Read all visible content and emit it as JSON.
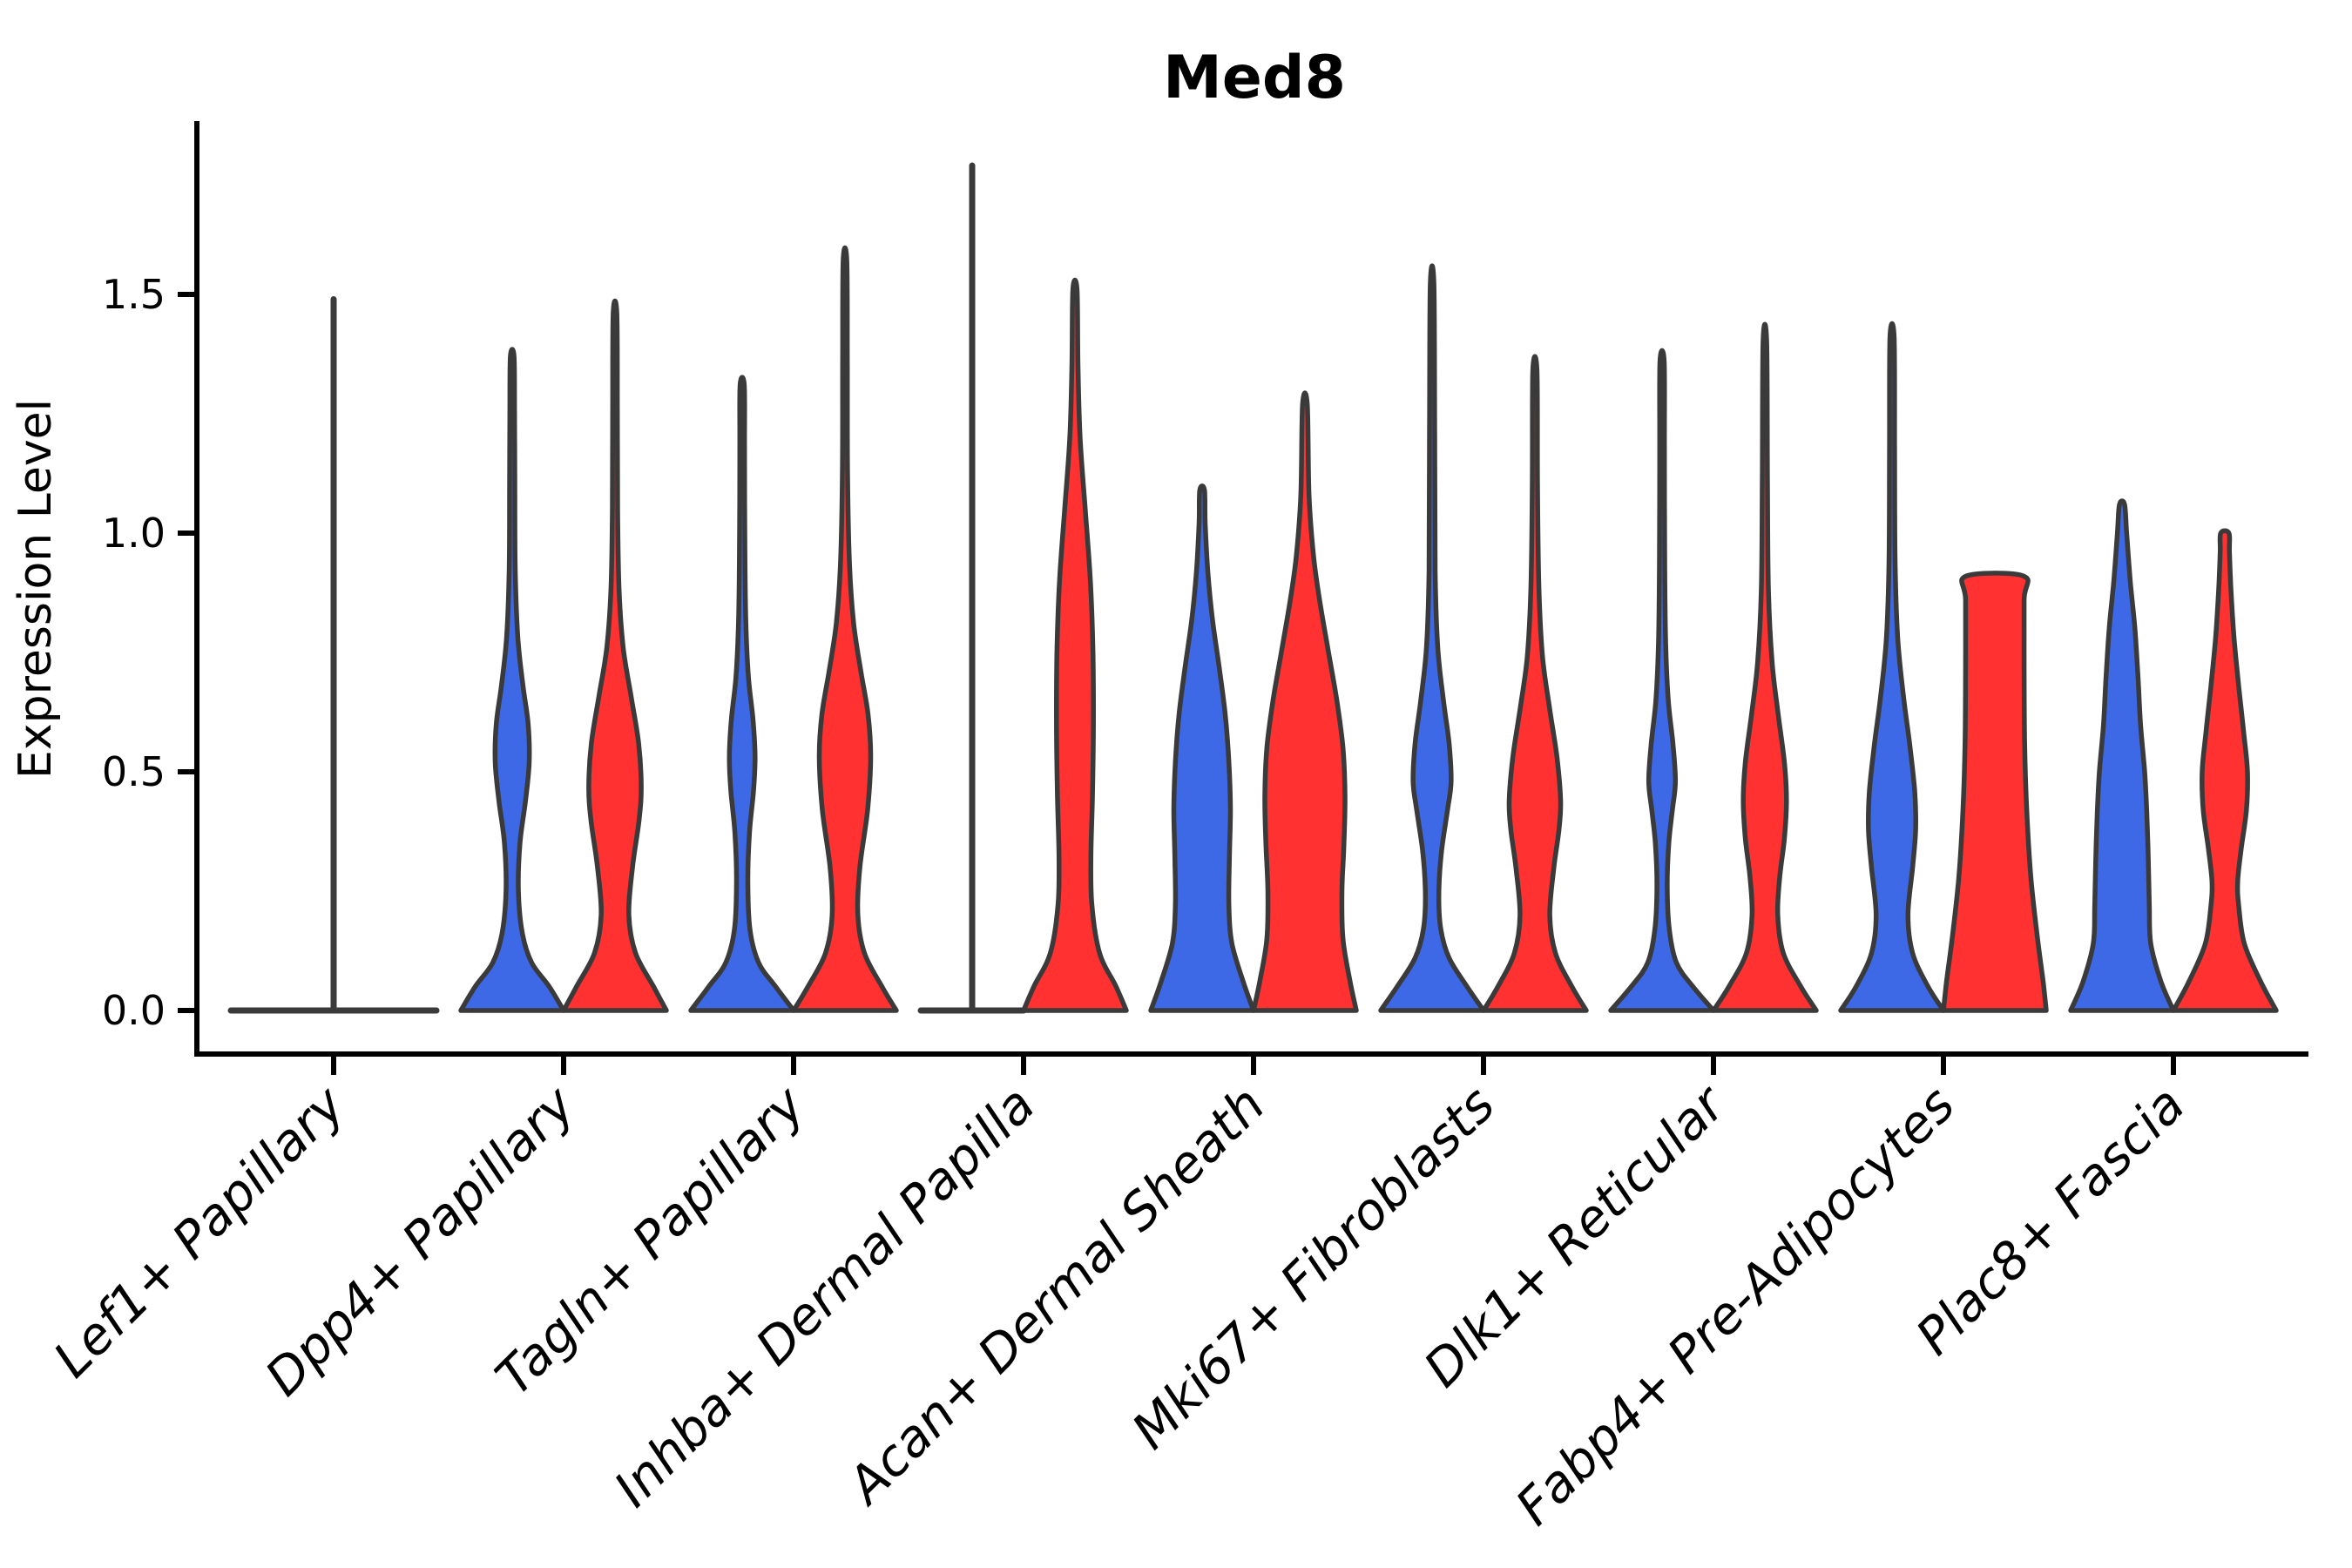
{
  "chart_data": {
    "type": "violin",
    "title": "Med8",
    "ylabel": "Expression Level",
    "xlabel": "",
    "ylim": [
      0,
      1.86
    ],
    "ytick_labels": [
      "0.0",
      "0.5",
      "1.0",
      "1.5"
    ],
    "ytick_values": [
      0,
      0.5,
      1.0,
      1.5
    ],
    "grid": false,
    "legend_position": "none",
    "x_tick_rotation": 45,
    "outline_color": "#3A3A3A",
    "series": [
      {
        "name": "group-blue",
        "color": "#3E69E6"
      },
      {
        "name": "group-red",
        "color": "#FF3131"
      }
    ],
    "categories": [
      "Lef1+ Papillary",
      "Dpp4+ Papillary",
      "Tagln+ Papillary",
      "Inhba+ Dermal Papilla",
      "Acan+ Dermal Sheath",
      "Mki67+ Fibroblasts",
      "Dlk1+ Reticular",
      "Fabp4+ Pre-Adipocytes",
      "Plac8+ Fascia"
    ],
    "violins": [
      {
        "category": "Lef1+ Papillary",
        "blue": {
          "type": "flat_spike",
          "span": "category",
          "max": 1.49
        },
        "red": {
          "type": "absent",
          "max": 0
        }
      },
      {
        "category": "Dpp4+ Papillary",
        "blue": {
          "type": "kde",
          "max": 1.37,
          "flat_top": false,
          "profile": [
            [
              0,
              1.0
            ],
            [
              0.05,
              0.72
            ],
            [
              0.1,
              0.38
            ],
            [
              0.16,
              0.2
            ],
            [
              0.25,
              0.12
            ],
            [
              0.35,
              0.15
            ],
            [
              0.44,
              0.26
            ],
            [
              0.52,
              0.33
            ],
            [
              0.6,
              0.31
            ],
            [
              0.68,
              0.21
            ],
            [
              0.78,
              0.11
            ],
            [
              0.92,
              0.06
            ],
            [
              1.1,
              0.05
            ],
            [
              1.25,
              0.045
            ],
            [
              1.37,
              0.035
            ]
          ]
        },
        "red": {
          "type": "kde",
          "max": 1.46,
          "flat_top": false,
          "profile": [
            [
              0,
              1.0
            ],
            [
              0.05,
              0.75
            ],
            [
              0.12,
              0.4
            ],
            [
              0.2,
              0.27
            ],
            [
              0.3,
              0.34
            ],
            [
              0.4,
              0.47
            ],
            [
              0.47,
              0.51
            ],
            [
              0.56,
              0.46
            ],
            [
              0.66,
              0.31
            ],
            [
              0.76,
              0.16
            ],
            [
              0.88,
              0.08
            ],
            [
              1.05,
              0.05
            ],
            [
              1.25,
              0.045
            ],
            [
              1.46,
              0.035
            ]
          ]
        }
      },
      {
        "category": "Tagln+ Papillary",
        "blue": {
          "type": "kde",
          "max": 1.31,
          "flat_top": false,
          "profile": [
            [
              0,
              1.0
            ],
            [
              0.05,
              0.65
            ],
            [
              0.1,
              0.32
            ],
            [
              0.17,
              0.15
            ],
            [
              0.27,
              0.11
            ],
            [
              0.37,
              0.14
            ],
            [
              0.46,
              0.22
            ],
            [
              0.53,
              0.25
            ],
            [
              0.61,
              0.21
            ],
            [
              0.7,
              0.12
            ],
            [
              0.82,
              0.07
            ],
            [
              1.0,
              0.05
            ],
            [
              1.18,
              0.045
            ],
            [
              1.31,
              0.04
            ]
          ]
        },
        "red": {
          "type": "kde",
          "max": 1.57,
          "flat_top": false,
          "profile": [
            [
              0,
              1.0
            ],
            [
              0.05,
              0.72
            ],
            [
              0.12,
              0.38
            ],
            [
              0.2,
              0.25
            ],
            [
              0.3,
              0.29
            ],
            [
              0.42,
              0.44
            ],
            [
              0.53,
              0.5
            ],
            [
              0.62,
              0.45
            ],
            [
              0.71,
              0.31
            ],
            [
              0.81,
              0.17
            ],
            [
              0.93,
              0.09
            ],
            [
              1.12,
              0.05
            ],
            [
              1.35,
              0.045
            ],
            [
              1.57,
              0.035
            ]
          ]
        }
      },
      {
        "category": "Inhba+ Dermal Papilla",
        "blue": {
          "type": "flat_spike",
          "span": "slot",
          "max": 1.77
        },
        "red": {
          "type": "kde",
          "max": 1.51,
          "flat_top": false,
          "profile": [
            [
              0,
              1.0
            ],
            [
              0.05,
              0.8
            ],
            [
              0.12,
              0.48
            ],
            [
              0.22,
              0.33
            ],
            [
              0.32,
              0.31
            ],
            [
              0.45,
              0.34
            ],
            [
              0.6,
              0.36
            ],
            [
              0.75,
              0.35
            ],
            [
              0.9,
              0.3
            ],
            [
              1.05,
              0.2
            ],
            [
              1.2,
              0.1
            ],
            [
              1.35,
              0.06
            ],
            [
              1.51,
              0.04
            ]
          ]
        }
      },
      {
        "category": "Acan+ Dermal Sheath",
        "blue": {
          "type": "kde",
          "max": 1.09,
          "flat_top": false,
          "profile": [
            [
              0,
              1.0
            ],
            [
              0.06,
              0.8
            ],
            [
              0.14,
              0.58
            ],
            [
              0.22,
              0.52
            ],
            [
              0.32,
              0.53
            ],
            [
              0.42,
              0.55
            ],
            [
              0.52,
              0.52
            ],
            [
              0.62,
              0.45
            ],
            [
              0.72,
              0.33
            ],
            [
              0.82,
              0.2
            ],
            [
              0.92,
              0.11
            ],
            [
              1.02,
              0.06
            ],
            [
              1.09,
              0.045
            ]
          ]
        },
        "red": {
          "type": "kde",
          "max": 1.27,
          "flat_top": false,
          "profile": [
            [
              0,
              1.0
            ],
            [
              0.06,
              0.88
            ],
            [
              0.15,
              0.74
            ],
            [
              0.25,
              0.72
            ],
            [
              0.35,
              0.76
            ],
            [
              0.45,
              0.78
            ],
            [
              0.55,
              0.74
            ],
            [
              0.65,
              0.62
            ],
            [
              0.75,
              0.46
            ],
            [
              0.85,
              0.3
            ],
            [
              0.95,
              0.17
            ],
            [
              1.08,
              0.08
            ],
            [
              1.27,
              0.045
            ]
          ]
        }
      },
      {
        "category": "Mki67+ Fibroblasts",
        "blue": {
          "type": "kde",
          "max": 1.52,
          "flat_top": false,
          "profile": [
            [
              0,
              1.0
            ],
            [
              0.05,
              0.68
            ],
            [
              0.11,
              0.33
            ],
            [
              0.17,
              0.17
            ],
            [
              0.24,
              0.13
            ],
            [
              0.33,
              0.18
            ],
            [
              0.42,
              0.3
            ],
            [
              0.48,
              0.37
            ],
            [
              0.56,
              0.33
            ],
            [
              0.65,
              0.22
            ],
            [
              0.76,
              0.11
            ],
            [
              0.92,
              0.06
            ],
            [
              1.2,
              0.05
            ],
            [
              1.52,
              0.035
            ]
          ]
        },
        "red": {
          "type": "kde",
          "max": 1.34,
          "flat_top": false,
          "profile": [
            [
              0,
              1.0
            ],
            [
              0.05,
              0.72
            ],
            [
              0.12,
              0.4
            ],
            [
              0.2,
              0.29
            ],
            [
              0.3,
              0.37
            ],
            [
              0.38,
              0.47
            ],
            [
              0.44,
              0.5
            ],
            [
              0.53,
              0.43
            ],
            [
              0.63,
              0.29
            ],
            [
              0.74,
              0.15
            ],
            [
              0.88,
              0.08
            ],
            [
              1.1,
              0.05
            ],
            [
              1.34,
              0.04
            ]
          ]
        }
      },
      {
        "category": "Dlk1+ Reticular",
        "blue": {
          "type": "kde",
          "max": 1.36,
          "flat_top": false,
          "profile": [
            [
              0,
              1.0
            ],
            [
              0.05,
              0.6
            ],
            [
              0.1,
              0.28
            ],
            [
              0.17,
              0.14
            ],
            [
              0.26,
              0.1
            ],
            [
              0.35,
              0.13
            ],
            [
              0.42,
              0.2
            ],
            [
              0.48,
              0.26
            ],
            [
              0.56,
              0.21
            ],
            [
              0.65,
              0.12
            ],
            [
              0.77,
              0.07
            ],
            [
              0.95,
              0.05
            ],
            [
              1.18,
              0.045
            ],
            [
              1.36,
              0.04
            ]
          ]
        },
        "red": {
          "type": "kde",
          "max": 1.4,
          "flat_top": false,
          "profile": [
            [
              0,
              1.0
            ],
            [
              0.05,
              0.7
            ],
            [
              0.12,
              0.36
            ],
            [
              0.2,
              0.25
            ],
            [
              0.28,
              0.29
            ],
            [
              0.36,
              0.38
            ],
            [
              0.44,
              0.42
            ],
            [
              0.52,
              0.38
            ],
            [
              0.62,
              0.26
            ],
            [
              0.73,
              0.14
            ],
            [
              0.88,
              0.07
            ],
            [
              1.1,
              0.05
            ],
            [
              1.4,
              0.035
            ]
          ]
        }
      },
      {
        "category": "Fabp4+ Pre-Adipocytes",
        "blue": {
          "type": "kde",
          "max": 1.41,
          "flat_top": false,
          "profile": [
            [
              0,
              1.0
            ],
            [
              0.05,
              0.7
            ],
            [
              0.12,
              0.4
            ],
            [
              0.2,
              0.31
            ],
            [
              0.3,
              0.4
            ],
            [
              0.38,
              0.46
            ],
            [
              0.46,
              0.44
            ],
            [
              0.56,
              0.34
            ],
            [
              0.66,
              0.22
            ],
            [
              0.78,
              0.11
            ],
            [
              0.94,
              0.06
            ],
            [
              1.18,
              0.05
            ],
            [
              1.41,
              0.04
            ]
          ]
        },
        "red": {
          "type": "kde",
          "max": 0.91,
          "flat_top": true,
          "profile": [
            [
              0,
              1.0
            ],
            [
              0.06,
              0.94
            ],
            [
              0.16,
              0.82
            ],
            [
              0.28,
              0.7
            ],
            [
              0.42,
              0.62
            ],
            [
              0.56,
              0.58
            ],
            [
              0.72,
              0.57
            ],
            [
              0.86,
              0.57
            ],
            [
              0.91,
              0.56
            ]
          ]
        }
      },
      {
        "category": "Plac8+ Fascia",
        "blue": {
          "type": "kde",
          "max": 1.06,
          "flat_top": false,
          "profile": [
            [
              0,
              1.0
            ],
            [
              0.06,
              0.76
            ],
            [
              0.14,
              0.56
            ],
            [
              0.22,
              0.53
            ],
            [
              0.32,
              0.51
            ],
            [
              0.42,
              0.48
            ],
            [
              0.5,
              0.44
            ],
            [
              0.6,
              0.36
            ],
            [
              0.7,
              0.31
            ],
            [
              0.8,
              0.25
            ],
            [
              0.9,
              0.16
            ],
            [
              1.0,
              0.09
            ],
            [
              1.06,
              0.05
            ]
          ]
        },
        "red": {
          "type": "kde",
          "max": 1.0,
          "flat_top": false,
          "profile": [
            [
              0,
              1.0
            ],
            [
              0.06,
              0.7
            ],
            [
              0.14,
              0.38
            ],
            [
              0.22,
              0.27
            ],
            [
              0.27,
              0.25
            ],
            [
              0.34,
              0.32
            ],
            [
              0.42,
              0.42
            ],
            [
              0.5,
              0.44
            ],
            [
              0.58,
              0.37
            ],
            [
              0.68,
              0.27
            ],
            [
              0.78,
              0.18
            ],
            [
              0.88,
              0.12
            ],
            [
              0.96,
              0.09
            ],
            [
              1.0,
              0.08
            ]
          ]
        }
      }
    ]
  }
}
